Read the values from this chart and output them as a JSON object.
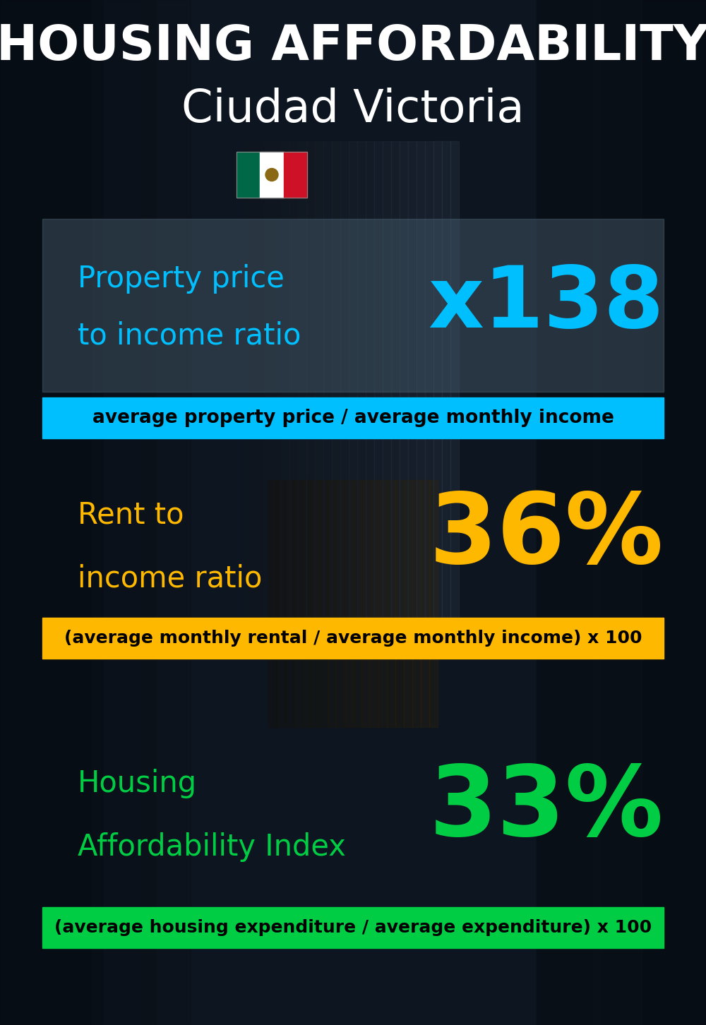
{
  "title_line1": "HOUSING AFFORDABILITY",
  "title_line2": "Ciudad Victoria",
  "bg_color": "#0d1520",
  "section1_label_line1": "Property price",
  "section1_label_line2": "to income ratio",
  "section1_value": "x138",
  "section1_value_color": "#00bfff",
  "section1_label_color": "#00bfff",
  "section1_formula": "average property price / average monthly income",
  "section1_formula_bg": "#00bfff",
  "section1_formula_color": "#000000",
  "section1_panel_color": "#4a6070",
  "section1_panel_alpha": 0.45,
  "section2_label_line1": "Rent to",
  "section2_label_line2": "income ratio",
  "section2_value": "36%",
  "section2_value_color": "#FFB800",
  "section2_label_color": "#FFB800",
  "section2_formula": "(average monthly rental / average monthly income) x 100",
  "section2_formula_bg": "#FFB800",
  "section2_formula_color": "#000000",
  "section3_label_line1": "Housing",
  "section3_label_line2": "Affordability Index",
  "section3_value": "33%",
  "section3_value_color": "#00cc44",
  "section3_label_color": "#00cc44",
  "section3_formula": "(average housing expenditure / average expenditure) x 100",
  "section3_formula_bg": "#00cc44",
  "section3_formula_color": "#000000",
  "flag_green": "#006847",
  "flag_white": "#FFFFFF",
  "flag_red": "#CE1126"
}
